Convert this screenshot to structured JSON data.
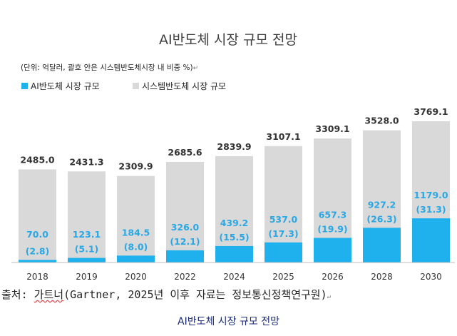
{
  "chart_data": {
    "type": "bar",
    "title": "AI반도체 시장 규모 전망",
    "unit_note": "(단위: 억달러, 괄호 안은 시스템반도체시장 내 비중 %)",
    "categories": [
      "2018",
      "2019",
      "2020",
      "2022",
      "2024",
      "2025",
      "2026",
      "2028",
      "2030"
    ],
    "series": [
      {
        "name": "AI반도체 시장 규모",
        "color": "#1fb0ee",
        "values": [
          70.0,
          123.1,
          184.5,
          326.0,
          439.2,
          537.0,
          657.3,
          927.2,
          1179.0
        ],
        "labels": [
          "70.0",
          "123.1",
          "184.5",
          "326.0",
          "439.2",
          "537.0",
          "657.3",
          "927.2",
          "1179.0"
        ],
        "share_labels": [
          "(2.8)",
          "(5.1)",
          "(8.0)",
          "(12.1)",
          "(15.5)",
          "(17.3)",
          "(19.9)",
          "(26.3)",
          "(31.3)"
        ]
      },
      {
        "name": "시스템반도체 시장 규모",
        "color": "#d9d9d9",
        "values": [
          2485.0,
          2431.3,
          2309.9,
          2685.6,
          2839.9,
          3107.1,
          3309.1,
          3528.0,
          3769.1
        ],
        "labels": [
          "2485.0",
          "2431.3",
          "2309.9",
          "2685.6",
          "2839.9",
          "3107.1",
          "3309.1",
          "3528.0",
          "3769.1"
        ]
      }
    ],
    "ylim": [
      0,
      3769.1
    ],
    "legend_position": "top-left"
  },
  "source": {
    "prefix": "출처: ",
    "underlined": "가트너",
    "rest": "(Gartner, 2025년 이후 자료는 정보통신정책연구원)"
  },
  "return_mark": "↵",
  "caption": "AI반도체 시장 규모 전망"
}
